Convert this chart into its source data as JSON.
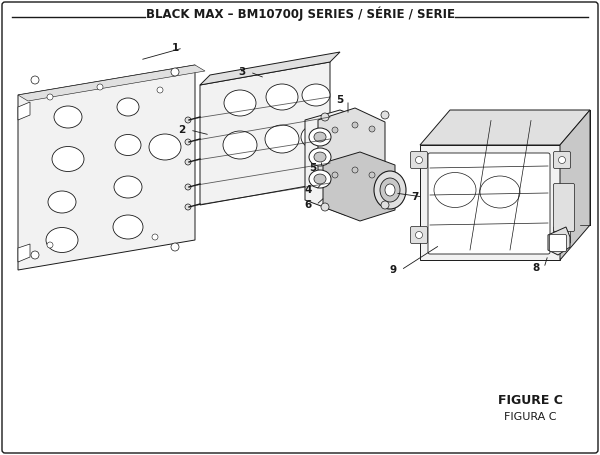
{
  "title": "BLACK MAX – BM10700J SERIES / SÉRIE / SERIE",
  "figure_label": "FIGURE C",
  "figura_label": "FIGURA C",
  "bg_color": "#ffffff",
  "lc": "#1a1a1a",
  "lw": 0.7,
  "title_fontsize": 8.5,
  "label_fontsize": 7.5
}
